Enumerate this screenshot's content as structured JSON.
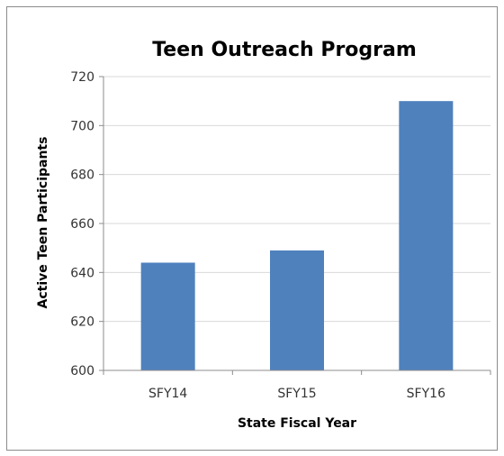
{
  "chart_data": {
    "type": "bar",
    "title": "Teen Outreach Program",
    "xlabel": "State Fiscal Year",
    "ylabel": "Active Teen Participants",
    "categories": [
      "SFY14",
      "SFY15",
      "SFY16"
    ],
    "values": [
      644,
      649,
      710
    ],
    "ylim": [
      600,
      720
    ],
    "yticks": [
      600,
      620,
      640,
      660,
      680,
      700,
      720
    ],
    "grid": true,
    "legend": "none",
    "bar_color": "#4f81bd",
    "grid_color": "#d9d9d9",
    "axis_color": "#8c8c8c"
  }
}
